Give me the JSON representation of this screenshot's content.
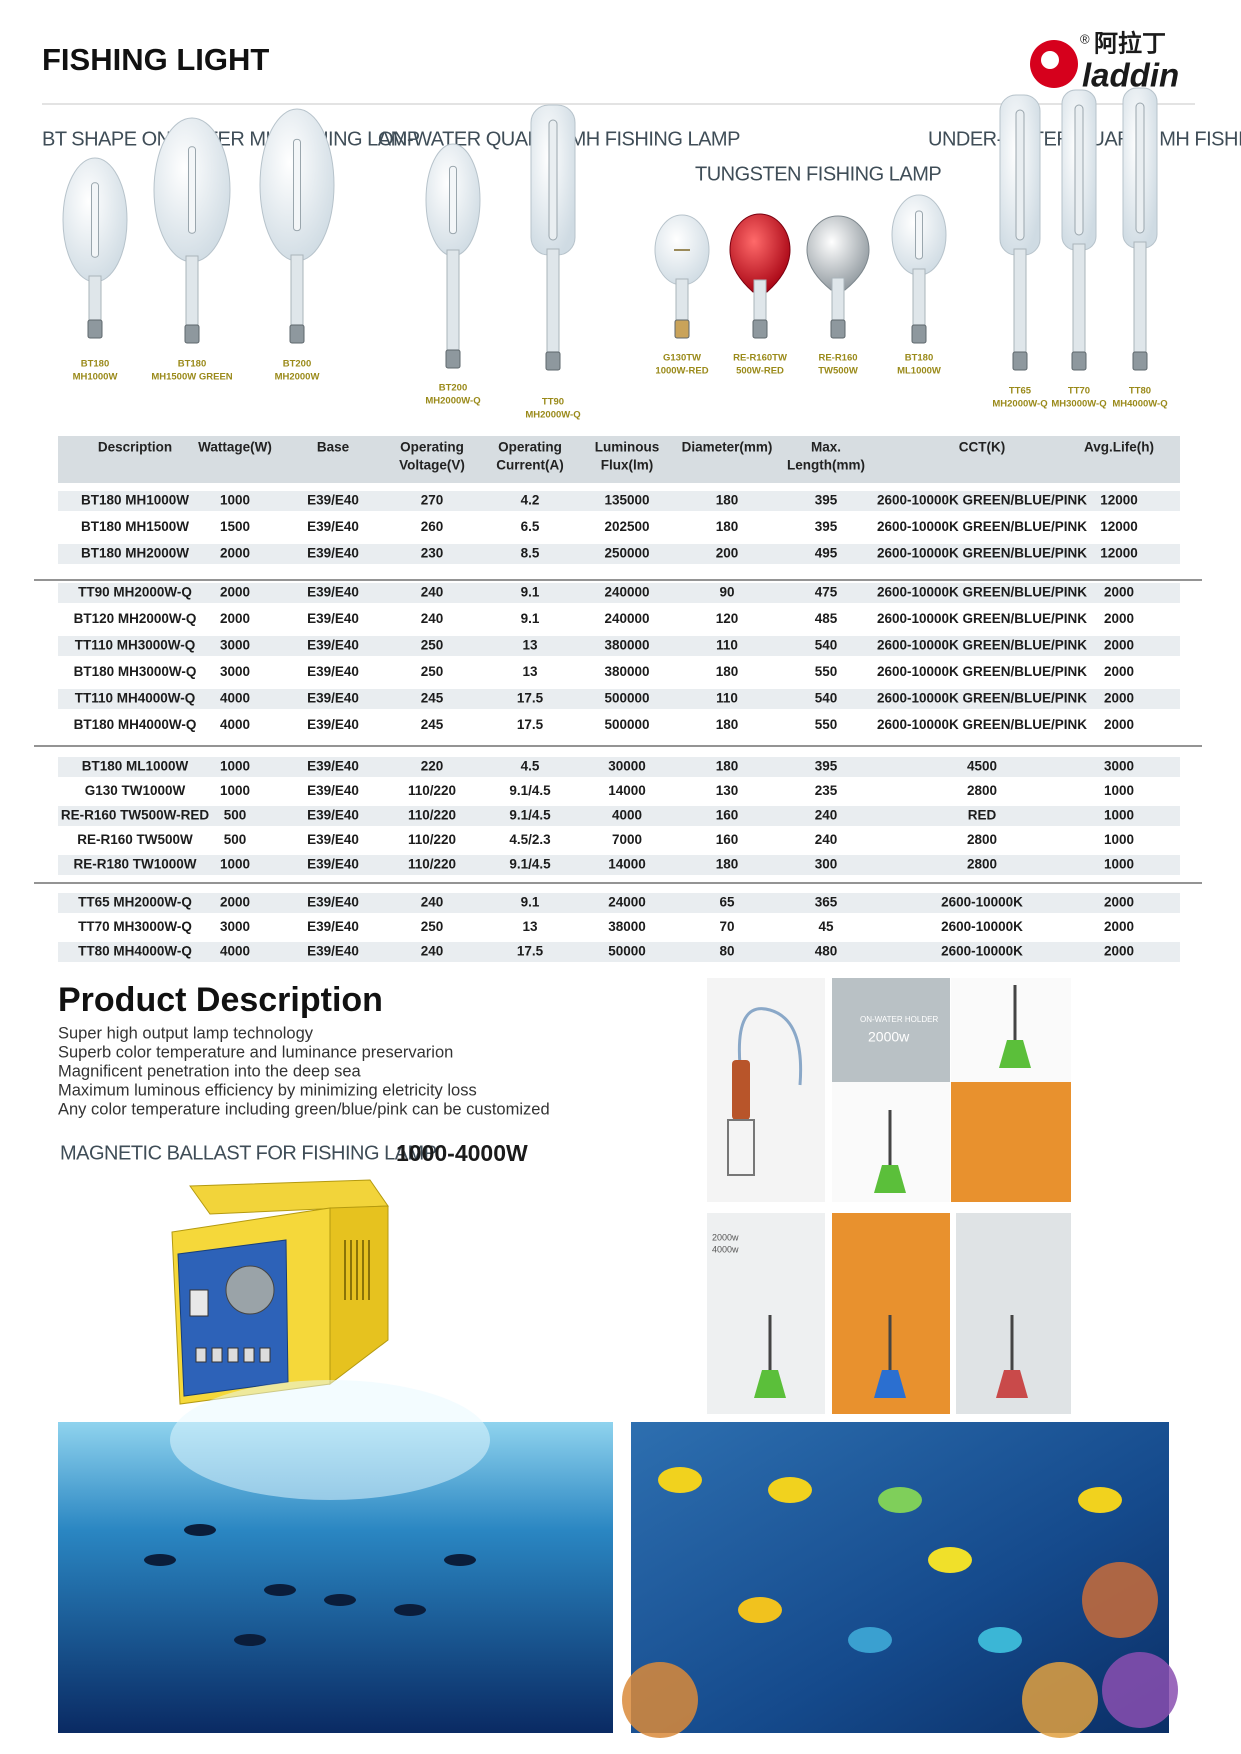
{
  "header": {
    "title": "FISHING LIGHT",
    "logo": {
      "mark": "®",
      "chinese": "阿拉丁",
      "name": "laddin"
    }
  },
  "lamp_sections": [
    {
      "title": "BT SHAPE ON-WATER MH FISHING LAMP",
      "lamps": [
        {
          "model": "BT180",
          "spec": "MH1000W"
        },
        {
          "model": "BT180",
          "spec": "MH1500W GREEN"
        },
        {
          "model": "BT200",
          "spec": "MH2000W"
        }
      ]
    },
    {
      "title": "ON-WATER QUARTZ MH FISHING LAMP",
      "lamps": [
        {
          "model": "BT200",
          "spec": "MH2000W-Q"
        },
        {
          "model": "TT90",
          "spec": "MH2000W-Q"
        }
      ]
    },
    {
      "title": "TUNGSTEN FISHING LAMP",
      "lamps": [
        {
          "model": "G130TW",
          "spec": "1000W-RED"
        },
        {
          "model": "RE-R160TW",
          "spec": "500W-RED"
        },
        {
          "model": "RE-R160",
          "spec": "TW500W"
        },
        {
          "model": "BT180",
          "spec": "ML1000W"
        }
      ]
    },
    {
      "title": "UNDER-WATER QUARTZ MH FISHING LAMP",
      "lamps": [
        {
          "model": "TT65",
          "spec": "MH2000W-Q"
        },
        {
          "model": "TT70",
          "spec": "MH3000W-Q"
        },
        {
          "model": "TT80",
          "spec": "MH4000W-Q"
        }
      ]
    }
  ],
  "table": {
    "headers": [
      [
        "Description"
      ],
      [
        "Wattage(W)"
      ],
      [
        "Base"
      ],
      [
        "Operating",
        "Voltage(V)"
      ],
      [
        "Operating",
        "Current(A)"
      ],
      [
        "Luminous",
        "Flux(lm)"
      ],
      [
        "Diameter(mm)"
      ],
      [
        "Max.",
        "Length(mm)"
      ],
      [
        "CCT(K)"
      ],
      [
        "Avg.Life(h)"
      ]
    ],
    "groups": [
      [
        [
          "BT180 MH1000W",
          "1000",
          "E39/E40",
          "270",
          "4.2",
          "135000",
          "180",
          "395",
          "2600-10000K GREEN/BLUE/PINK",
          "12000"
        ],
        [
          "BT180 MH1500W",
          "1500",
          "E39/E40",
          "260",
          "6.5",
          "202500",
          "180",
          "395",
          "2600-10000K GREEN/BLUE/PINK",
          "12000"
        ],
        [
          "BT180 MH2000W",
          "2000",
          "E39/E40",
          "230",
          "8.5",
          "250000",
          "200",
          "495",
          "2600-10000K GREEN/BLUE/PINK",
          "12000"
        ]
      ],
      [
        [
          "TT90 MH2000W-Q",
          "2000",
          "E39/E40",
          "240",
          "9.1",
          "240000",
          "90",
          "475",
          "2600-10000K GREEN/BLUE/PINK",
          "2000"
        ],
        [
          "BT120 MH2000W-Q",
          "2000",
          "E39/E40",
          "240",
          "9.1",
          "240000",
          "120",
          "485",
          "2600-10000K GREEN/BLUE/PINK",
          "2000"
        ],
        [
          "TT110 MH3000W-Q",
          "3000",
          "E39/E40",
          "250",
          "13",
          "380000",
          "110",
          "540",
          "2600-10000K GREEN/BLUE/PINK",
          "2000"
        ],
        [
          "BT180 MH3000W-Q",
          "3000",
          "E39/E40",
          "250",
          "13",
          "380000",
          "180",
          "550",
          "2600-10000K GREEN/BLUE/PINK",
          "2000"
        ],
        [
          "TT110 MH4000W-Q",
          "4000",
          "E39/E40",
          "245",
          "17.5",
          "500000",
          "110",
          "540",
          "2600-10000K GREEN/BLUE/PINK",
          "2000"
        ],
        [
          "BT180 MH4000W-Q",
          "4000",
          "E39/E40",
          "245",
          "17.5",
          "500000",
          "180",
          "550",
          "2600-10000K GREEN/BLUE/PINK",
          "2000"
        ]
      ],
      [
        [
          "BT180 ML1000W",
          "1000",
          "E39/E40",
          "220",
          "4.5",
          "30000",
          "180",
          "395",
          "4500",
          "3000"
        ],
        [
          "G130 TW1000W",
          "1000",
          "E39/E40",
          "110/220",
          "9.1/4.5",
          "14000",
          "130",
          "235",
          "2800",
          "1000"
        ],
        [
          "RE-R160 TW500W-RED",
          "500",
          "E39/E40",
          "110/220",
          "9.1/4.5",
          "4000",
          "160",
          "240",
          "RED",
          "1000"
        ],
        [
          "RE-R160 TW500W",
          "500",
          "E39/E40",
          "110/220",
          "4.5/2.3",
          "7000",
          "160",
          "240",
          "2800",
          "1000"
        ],
        [
          "RE-R180 TW1000W",
          "1000",
          "E39/E40",
          "110/220",
          "9.1/4.5",
          "14000",
          "180",
          "300",
          "2800",
          "1000"
        ]
      ],
      [
        [
          "TT65 MH2000W-Q",
          "2000",
          "E39/E40",
          "240",
          "9.1",
          "24000",
          "65",
          "365",
          "2600-10000K",
          "2000"
        ],
        [
          "TT70 MH3000W-Q",
          "3000",
          "E39/E40",
          "250",
          "13",
          "38000",
          "70",
          "45",
          "2600-10000K",
          "2000"
        ],
        [
          "TT80 MH4000W-Q",
          "4000",
          "E39/E40",
          "240",
          "17.5",
          "50000",
          "80",
          "480",
          "2600-10000K",
          "2000"
        ]
      ]
    ]
  },
  "product_description": {
    "title": "Product Description",
    "lines": [
      "Super high output lamp technology",
      "Superb color temperature and luminance preservarion",
      "Magnificent penetration into the deep sea",
      "Maximum luminous efficiency by minimizing eletricity loss",
      "Any color temperature including green/blue/pink can be customized"
    ]
  },
  "ballast": {
    "title": "MAGNETIC BALLAST FOR FISHING LAMP",
    "power": "1000-4000W"
  },
  "accessory_photos": {
    "labels": [
      "ON-WATER HOLDER",
      "2000w",
      "2000w",
      "4000w"
    ]
  }
}
